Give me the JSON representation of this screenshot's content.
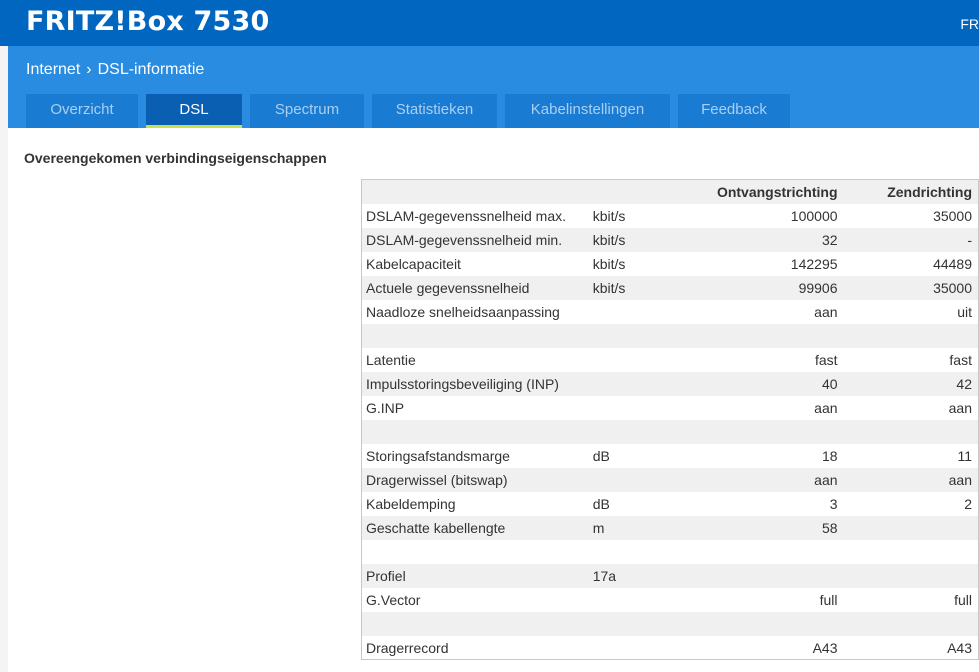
{
  "header": {
    "brand": "FRITZ!Box 7530",
    "right_text": "FR"
  },
  "breadcrumb": {
    "root": "Internet",
    "separator": "›",
    "current": "DSL-informatie"
  },
  "tabs": [
    {
      "label": "Overzicht",
      "active": false
    },
    {
      "label": "DSL",
      "active": true
    },
    {
      "label": "Spectrum",
      "active": false
    },
    {
      "label": "Statistieken",
      "active": false
    },
    {
      "label": "Kabelinstellingen",
      "active": false
    },
    {
      "label": "Feedback",
      "active": false
    }
  ],
  "section": {
    "title": "Overeengekomen verbindingseigenschappen"
  },
  "table": {
    "headers": [
      "",
      "",
      "Ontvangstrichting",
      "Zendrichting"
    ],
    "rows": [
      [
        "DSLAM-gegevenssnelheid max.",
        "kbit/s",
        "100000",
        "35000"
      ],
      [
        "DSLAM-gegevenssnelheid min.",
        "kbit/s",
        "32",
        "-"
      ],
      [
        "Kabelcapaciteit",
        "kbit/s",
        "142295",
        "44489"
      ],
      [
        "Actuele gegevenssnelheid",
        "kbit/s",
        "99906",
        "35000"
      ],
      [
        "Naadloze snelheidsaanpassing",
        "",
        "aan",
        "uit"
      ],
      [
        "",
        "",
        "",
        ""
      ],
      [
        "Latentie",
        "",
        "fast",
        "fast"
      ],
      [
        "Impulsstoringsbeveiliging (INP)",
        "",
        "40",
        "42"
      ],
      [
        "G.INP",
        "",
        "aan",
        "aan"
      ],
      [
        "",
        "",
        "",
        ""
      ],
      [
        "Storingsafstandsmarge",
        "dB",
        "18",
        "11"
      ],
      [
        "Dragerwissel (bitswap)",
        "",
        "aan",
        "aan"
      ],
      [
        "Kabeldemping",
        "dB",
        "3",
        "2"
      ],
      [
        "Geschatte kabellengte",
        "m",
        "58",
        ""
      ],
      [
        "",
        "",
        "",
        ""
      ],
      [
        "Profiel",
        "17a",
        "",
        ""
      ],
      [
        "G.Vector",
        "",
        "full",
        "full"
      ],
      [
        "",
        "",
        "",
        ""
      ],
      [
        "Dragerrecord",
        "",
        "A43",
        "A43"
      ]
    ]
  },
  "colors": {
    "topbar": "#0066c0",
    "subbar": "#2a8ce0",
    "tab_active": "#0a5fb2",
    "tab_underline": "#c8e04b"
  }
}
